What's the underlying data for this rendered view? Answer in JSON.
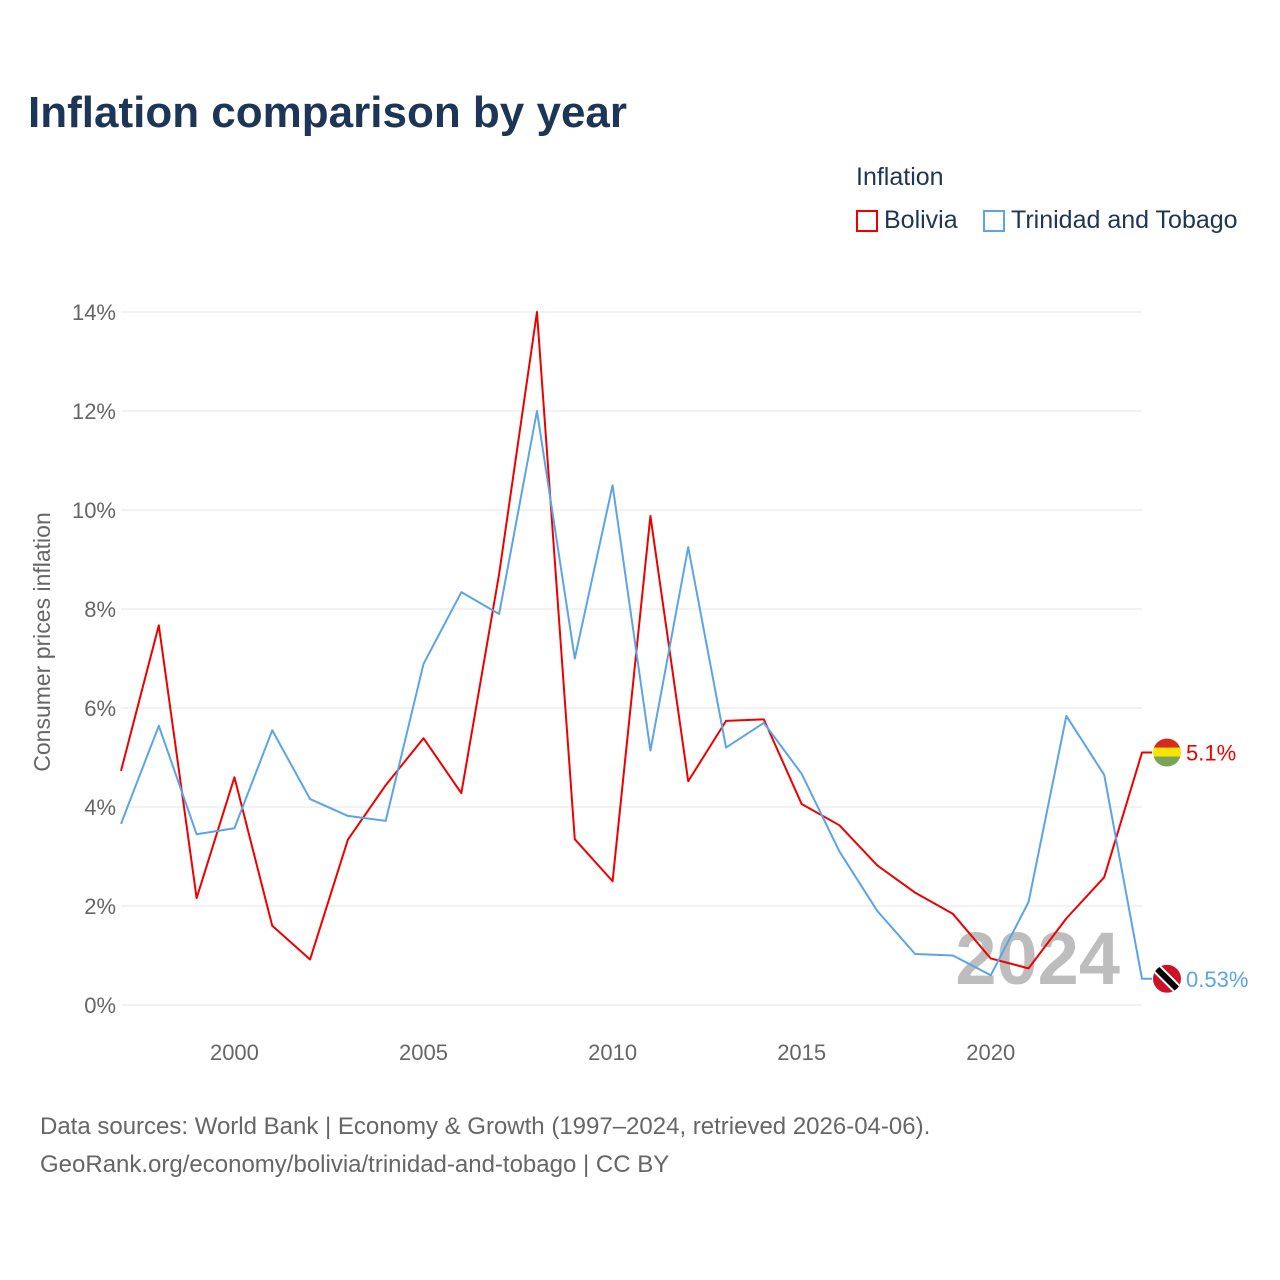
{
  "title": "Inflation comparison by year",
  "source": {
    "line1": "Data sources: World Bank | Economy & Growth (1997–2024, retrieved 2026-04-06).",
    "line2": "GeoRank.org/economy/bolivia/trinidad-and-tobago | CC BY"
  },
  "chart_data": {
    "type": "line",
    "title": "Inflation comparison by year",
    "ylabel": "Consumer prices inflation",
    "xlabel": "",
    "legend_title": "Inflation",
    "legend_position": "top-right",
    "ylim": [
      0,
      14
    ],
    "xlim": [
      1997,
      2024
    ],
    "yticks": [
      0,
      2,
      4,
      6,
      8,
      10,
      12,
      14
    ],
    "ytick_labels": [
      "0%",
      "2%",
      "4%",
      "6%",
      "8%",
      "10%",
      "12%",
      "14%"
    ],
    "xticks": [
      2000,
      2005,
      2010,
      2015,
      2020
    ],
    "xtick_labels": [
      "2000",
      "2005",
      "2010",
      "2015",
      "2020"
    ],
    "watermark": "2024",
    "grid": true,
    "x": [
      1997,
      1998,
      1999,
      2000,
      2001,
      2002,
      2003,
      2004,
      2005,
      2006,
      2007,
      2008,
      2009,
      2010,
      2011,
      2012,
      2013,
      2014,
      2015,
      2016,
      2017,
      2018,
      2019,
      2020,
      2021,
      2022,
      2023,
      2024
    ],
    "series": [
      {
        "name": "Bolivia",
        "color": "#ee0000",
        "end_label": "5.1%",
        "flag": "bolivia-flag",
        "values": [
          4.73,
          7.67,
          2.16,
          4.6,
          1.6,
          0.92,
          3.34,
          4.44,
          5.39,
          4.28,
          8.71,
          14.0,
          3.35,
          2.5,
          9.88,
          4.52,
          5.74,
          5.77,
          4.06,
          3.63,
          2.82,
          2.27,
          1.84,
          0.94,
          0.74,
          1.75,
          2.58,
          5.1
        ]
      },
      {
        "name": "Trinidad and Tobago",
        "color": "#5ba4e6",
        "end_label": "0.53%",
        "flag": "trinidad-flag",
        "values": [
          3.66,
          5.64,
          3.45,
          3.57,
          5.55,
          4.16,
          3.82,
          3.72,
          6.89,
          8.34,
          7.9,
          12.0,
          7.0,
          10.5,
          5.14,
          9.25,
          5.2,
          5.7,
          4.67,
          3.1,
          1.9,
          1.03,
          1.0,
          0.6,
          2.08,
          5.84,
          4.65,
          0.53
        ]
      }
    ]
  }
}
